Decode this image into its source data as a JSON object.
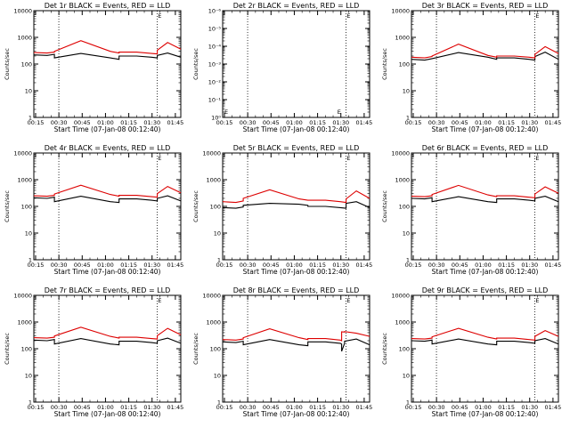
{
  "figure": {
    "background": "#ffffff",
    "axis_color": "#000000"
  },
  "series_colors": {
    "events": "#000000",
    "lld": "#dd0000"
  },
  "chart_data": [
    {
      "type": "line",
      "title": "Det 1r BLACK = Events, RED = LLD",
      "xlabel": "Start Time (07-Jan-08 00:12:40)",
      "ylabel": "Counts/sec",
      "yscale": "log",
      "ylim": [
        1,
        10000
      ],
      "yticks": [
        "1",
        "10",
        "100",
        "1000",
        "10000"
      ],
      "xticks": [
        "00:15",
        "00:30",
        "00:45",
        "01:00",
        "01:15",
        "01:30",
        "01:45"
      ],
      "marker_label": "E",
      "series": [
        {
          "name": "Events",
          "color": "#000000",
          "x": [
            0.0,
            0.09,
            0.14,
            0.14,
            0.32,
            0.52,
            0.58,
            0.58,
            0.7,
            0.8,
            0.84,
            0.84,
            0.91,
            1.0
          ],
          "y": [
            220,
            210,
            230,
            170,
            250,
            170,
            150,
            200,
            200,
            180,
            170,
            210,
            260,
            180
          ]
        },
        {
          "name": "LLD",
          "color": "#dd0000",
          "x": [
            0.0,
            0.09,
            0.14,
            0.14,
            0.32,
            0.52,
            0.58,
            0.58,
            0.7,
            0.8,
            0.84,
            0.84,
            0.91,
            1.0
          ],
          "y": [
            270,
            260,
            280,
            300,
            750,
            300,
            260,
            280,
            280,
            250,
            240,
            330,
            640,
            360
          ]
        }
      ]
    },
    {
      "type": "line",
      "title": "Det 2r BLACK = Events, RED = LLD",
      "xlabel": "Start Time (07-Jan-08 00:12:40)",
      "ylabel": "Counts/sec",
      "yscale": "log",
      "ylim": [
        1,
        1e-06
      ],
      "yticks": [
        "10⁰",
        "10⁻¹",
        "10⁻²",
        "10⁻³",
        "10⁻⁴",
        "10⁻⁵",
        "10⁻⁶"
      ],
      "xticks": [
        "00:15",
        "00:30",
        "00:45",
        "01:00",
        "01:15",
        "01:30",
        "01:45"
      ],
      "marker_label": "E",
      "series": []
    },
    {
      "type": "line",
      "title": "Det 3r BLACK = Events, RED = LLD",
      "xlabel": "Start Time (07-Jan-08 00:12:40)",
      "ylabel": "Counts/sec",
      "yscale": "log",
      "ylim": [
        1,
        10000
      ],
      "yticks": [
        "1",
        "10",
        "100",
        "1000",
        "10000"
      ],
      "xticks": [
        "00:15",
        "00:30",
        "00:45",
        "01:00",
        "01:15",
        "01:30",
        "01:45"
      ],
      "marker_label": "E",
      "series": [
        {
          "name": "Events",
          "color": "#000000",
          "x": [
            0.0,
            0.09,
            0.14,
            0.14,
            0.32,
            0.52,
            0.58,
            0.58,
            0.7,
            0.8,
            0.84,
            0.84,
            0.91,
            1.0
          ],
          "y": [
            150,
            140,
            160,
            160,
            270,
            180,
            150,
            170,
            170,
            150,
            140,
            190,
            280,
            150
          ]
        },
        {
          "name": "LLD",
          "color": "#dd0000",
          "x": [
            0.0,
            0.09,
            0.14,
            0.14,
            0.32,
            0.52,
            0.58,
            0.58,
            0.7,
            0.8,
            0.84,
            0.84,
            0.91,
            1.0
          ],
          "y": [
            180,
            170,
            190,
            200,
            560,
            210,
            180,
            200,
            200,
            180,
            170,
            230,
            450,
            250
          ]
        }
      ]
    },
    {
      "type": "line",
      "title": "Det 4r BLACK = Events, RED = LLD",
      "xlabel": "Start Time (07-Jan-08 00:12:40)",
      "ylabel": "Counts/sec",
      "yscale": "log",
      "ylim": [
        1,
        10000
      ],
      "yticks": [
        "1",
        "10",
        "100",
        "1000",
        "10000"
      ],
      "xticks": [
        "00:15",
        "00:30",
        "00:45",
        "01:00",
        "01:15",
        "01:30",
        "01:45"
      ],
      "marker_label": "E",
      "series": [
        {
          "name": "Events",
          "color": "#000000",
          "x": [
            0.0,
            0.09,
            0.14,
            0.14,
            0.32,
            0.52,
            0.58,
            0.58,
            0.7,
            0.8,
            0.84,
            0.84,
            0.91,
            1.0
          ],
          "y": [
            210,
            200,
            220,
            150,
            240,
            150,
            140,
            190,
            190,
            170,
            160,
            200,
            250,
            160
          ]
        },
        {
          "name": "LLD",
          "color": "#dd0000",
          "x": [
            0.0,
            0.09,
            0.14,
            0.14,
            0.32,
            0.52,
            0.58,
            0.58,
            0.7,
            0.8,
            0.84,
            0.84,
            0.91,
            1.0
          ],
          "y": [
            250,
            240,
            260,
            290,
            620,
            280,
            240,
            260,
            260,
            230,
            220,
            300,
            560,
            320
          ]
        }
      ]
    },
    {
      "type": "line",
      "title": "Det 5r BLACK = Events, RED = LLD",
      "xlabel": "Start Time (07-Jan-08 00:12:40)",
      "ylabel": "Counts/sec",
      "yscale": "log",
      "ylim": [
        1,
        10000
      ],
      "yticks": [
        "1",
        "10",
        "100",
        "1000",
        "10000"
      ],
      "xticks": [
        "00:15",
        "00:30",
        "00:45",
        "01:00",
        "01:15",
        "01:30",
        "01:45"
      ],
      "marker_label": "E",
      "series": [
        {
          "name": "Events",
          "color": "#000000",
          "x": [
            0.0,
            0.09,
            0.14,
            0.14,
            0.32,
            0.52,
            0.58,
            0.58,
            0.7,
            0.8,
            0.84,
            0.84,
            0.91,
            1.0
          ],
          "y": [
            90,
            85,
            95,
            110,
            130,
            120,
            110,
            100,
            100,
            90,
            85,
            130,
            150,
            90
          ]
        },
        {
          "name": "LLD",
          "color": "#dd0000",
          "x": [
            0.0,
            0.09,
            0.14,
            0.14,
            0.32,
            0.52,
            0.58,
            0.58,
            0.7,
            0.8,
            0.84,
            0.84,
            0.91,
            1.0
          ],
          "y": [
            150,
            140,
            160,
            200,
            420,
            190,
            170,
            170,
            170,
            150,
            140,
            190,
            380,
            200
          ]
        }
      ]
    },
    {
      "type": "line",
      "title": "Det 6r BLACK = Events, RED = LLD",
      "xlabel": "Start Time (07-Jan-08 00:12:40)",
      "ylabel": "Counts/sec",
      "yscale": "log",
      "ylim": [
        1,
        10000
      ],
      "yticks": [
        "1",
        "10",
        "100",
        "1000",
        "10000"
      ],
      "xticks": [
        "00:15",
        "00:30",
        "00:45",
        "01:00",
        "01:15",
        "01:30",
        "01:45"
      ],
      "marker_label": "E",
      "series": [
        {
          "name": "Events",
          "color": "#000000",
          "x": [
            0.0,
            0.09,
            0.14,
            0.14,
            0.32,
            0.52,
            0.58,
            0.58,
            0.7,
            0.8,
            0.84,
            0.84,
            0.91,
            1.0
          ],
          "y": [
            200,
            190,
            210,
            150,
            230,
            150,
            140,
            190,
            190,
            170,
            160,
            200,
            240,
            150
          ]
        },
        {
          "name": "LLD",
          "color": "#dd0000",
          "x": [
            0.0,
            0.09,
            0.14,
            0.14,
            0.32,
            0.52,
            0.58,
            0.58,
            0.7,
            0.8,
            0.84,
            0.84,
            0.91,
            1.0
          ],
          "y": [
            240,
            230,
            250,
            280,
            610,
            270,
            230,
            250,
            250,
            220,
            210,
            290,
            540,
            310
          ]
        }
      ]
    },
    {
      "type": "line",
      "title": "Det 7r BLACK = Events, RED = LLD",
      "xlabel": "Start Time (07-Jan-08 00:12:40)",
      "ylabel": "Counts/sec",
      "yscale": "log",
      "ylim": [
        1,
        10000
      ],
      "yticks": [
        "1",
        "10",
        "100",
        "1000",
        "10000"
      ],
      "xticks": [
        "00:15",
        "00:30",
        "00:45",
        "01:00",
        "01:15",
        "01:30",
        "01:45"
      ],
      "marker_label": "E",
      "series": [
        {
          "name": "Events",
          "color": "#000000",
          "x": [
            0.0,
            0.09,
            0.14,
            0.14,
            0.32,
            0.52,
            0.58,
            0.58,
            0.7,
            0.8,
            0.84,
            0.84,
            0.91,
            1.0
          ],
          "y": [
            210,
            200,
            220,
            150,
            240,
            150,
            140,
            190,
            190,
            170,
            160,
            200,
            250,
            160
          ]
        },
        {
          "name": "LLD",
          "color": "#dd0000",
          "x": [
            0.0,
            0.09,
            0.14,
            0.14,
            0.32,
            0.52,
            0.58,
            0.58,
            0.7,
            0.8,
            0.84,
            0.84,
            0.91,
            1.0
          ],
          "y": [
            260,
            250,
            270,
            300,
            640,
            290,
            250,
            270,
            270,
            240,
            230,
            310,
            580,
            330
          ]
        }
      ]
    },
    {
      "type": "line",
      "title": "Det 8r BLACK = Events, RED = LLD",
      "xlabel": "Start Time (07-Jan-08 00:12:40)",
      "ylabel": "Counts/sec",
      "yscale": "log",
      "ylim": [
        1,
        10000
      ],
      "yticks": [
        "1",
        "10",
        "100",
        "1000",
        "10000"
      ],
      "xticks": [
        "00:15",
        "00:30",
        "00:45",
        "01:00",
        "01:15",
        "01:30",
        "01:45"
      ],
      "marker_label": "E",
      "series": [
        {
          "name": "Events",
          "color": "#000000",
          "x": [
            0.0,
            0.09,
            0.14,
            0.14,
            0.32,
            0.52,
            0.58,
            0.58,
            0.7,
            0.8,
            0.81,
            0.81,
            0.83,
            0.83,
            0.91,
            1.0
          ],
          "y": [
            180,
            170,
            190,
            140,
            220,
            140,
            130,
            180,
            180,
            160,
            150,
            80,
            160,
            190,
            230,
            140
          ]
        },
        {
          "name": "LLD",
          "color": "#dd0000",
          "x": [
            0.0,
            0.09,
            0.14,
            0.14,
            0.32,
            0.52,
            0.58,
            0.58,
            0.7,
            0.8,
            0.81,
            0.81,
            0.83,
            0.83,
            0.91,
            1.0
          ],
          "y": [
            220,
            210,
            230,
            260,
            560,
            260,
            220,
            240,
            240,
            210,
            200,
            430,
            420,
            440,
            380,
            290
          ]
        }
      ]
    },
    {
      "type": "line",
      "title": "Det 9r BLACK = Events, RED = LLD",
      "xlabel": "Start Time (07-Jan-08 00:12:40)",
      "ylabel": "Counts/sec",
      "yscale": "log",
      "ylim": [
        1,
        10000
      ],
      "yticks": [
        "1",
        "10",
        "100",
        "1000",
        "10000"
      ],
      "xticks": [
        "00:15",
        "00:30",
        "00:45",
        "01:00",
        "01:15",
        "01:30",
        "01:45"
      ],
      "marker_label": "E",
      "series": [
        {
          "name": "Events",
          "color": "#000000",
          "x": [
            0.0,
            0.09,
            0.14,
            0.14,
            0.32,
            0.52,
            0.58,
            0.58,
            0.7,
            0.8,
            0.84,
            0.84,
            0.91,
            1.0
          ],
          "y": [
            200,
            190,
            210,
            150,
            230,
            150,
            140,
            190,
            190,
            170,
            160,
            200,
            240,
            150
          ]
        },
        {
          "name": "LLD",
          "color": "#dd0000",
          "x": [
            0.0,
            0.09,
            0.14,
            0.14,
            0.32,
            0.52,
            0.58,
            0.58,
            0.7,
            0.8,
            0.84,
            0.84,
            0.91,
            1.0
          ],
          "y": [
            240,
            230,
            250,
            280,
            580,
            270,
            230,
            250,
            250,
            220,
            210,
            290,
            480,
            290
          ]
        }
      ]
    }
  ]
}
